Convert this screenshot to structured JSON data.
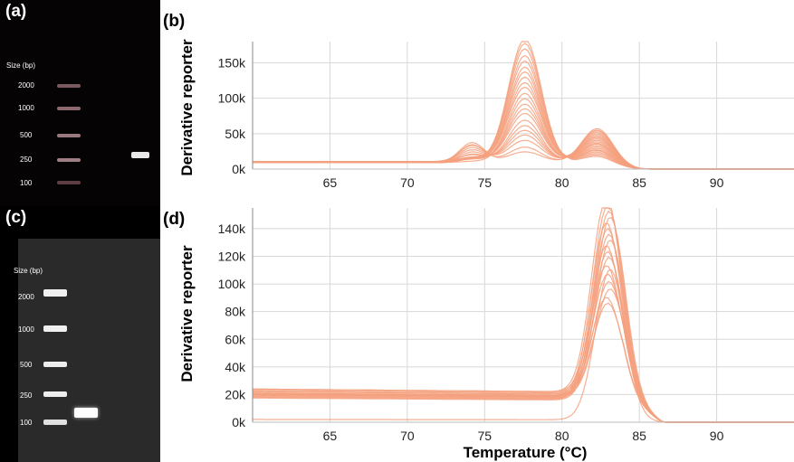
{
  "panels": {
    "a": {
      "label": "(a)",
      "size_header": "Size (bp)",
      "ladder": [
        "2000",
        "1000",
        "500",
        "250",
        "100"
      ]
    },
    "b": {
      "label": "(b)"
    },
    "c": {
      "label": "(c)",
      "size_header": "Size (bp)",
      "ladder": [
        "2000",
        "1000",
        "500",
        "250",
        "100"
      ]
    },
    "d": {
      "label": "(d)"
    }
  },
  "chart_data": [
    {
      "panel": "b",
      "type": "line",
      "ylabel": "Derivative reporter",
      "xlabel": "",
      "xlim": [
        60,
        95
      ],
      "ylim": [
        0,
        180000
      ],
      "xticks": [
        65,
        70,
        75,
        80,
        85,
        90
      ],
      "yticks": [
        0,
        50000,
        100000,
        150000
      ],
      "ytick_labels": [
        "0k",
        "50k",
        "100k",
        "150k"
      ],
      "grid": true,
      "line_color": "#f4a07e",
      "series_shape": {
        "baseline": 10000,
        "main_peak_center": 77.6,
        "main_peak_heights": [
          175000,
          168000,
          160000,
          150000,
          142000,
          135000,
          128000,
          120000,
          112000,
          105000,
          98000,
          90000,
          82000,
          75000,
          68000,
          60000,
          52000,
          45000,
          38000,
          30000,
          22000,
          15000
        ],
        "secondary_peak_center": 82.3,
        "secondary_peak_max": 52000,
        "shoulder_center": 74.2,
        "shoulder_max": 28000
      }
    },
    {
      "panel": "d",
      "type": "line",
      "ylabel": "Derivative reporter",
      "xlabel": "Temperature (°C)",
      "xlim": [
        60,
        95
      ],
      "ylim": [
        0,
        155000
      ],
      "xticks": [
        65,
        70,
        75,
        80,
        85,
        90
      ],
      "yticks": [
        0,
        20000,
        40000,
        60000,
        80000,
        100000,
        120000,
        140000
      ],
      "ytick_labels": [
        "0k",
        "20k",
        "40k",
        "60k",
        "80k",
        "100k",
        "120k",
        "140k"
      ],
      "grid": true,
      "line_color": "#f4a07e",
      "series_shape": {
        "baseline_levels": [
          24000,
          23000,
          22000,
          21000,
          20500,
          20000,
          19500,
          19000,
          18500,
          18000,
          17500,
          2000
        ],
        "peak_center": 83.0,
        "peak_heights": [
          155000,
          150000,
          146000,
          142000,
          138000,
          134000,
          130000,
          126000,
          122000,
          118000,
          114000,
          110000,
          106000,
          100000,
          95000,
          90000,
          84000,
          80000
        ]
      }
    }
  ]
}
